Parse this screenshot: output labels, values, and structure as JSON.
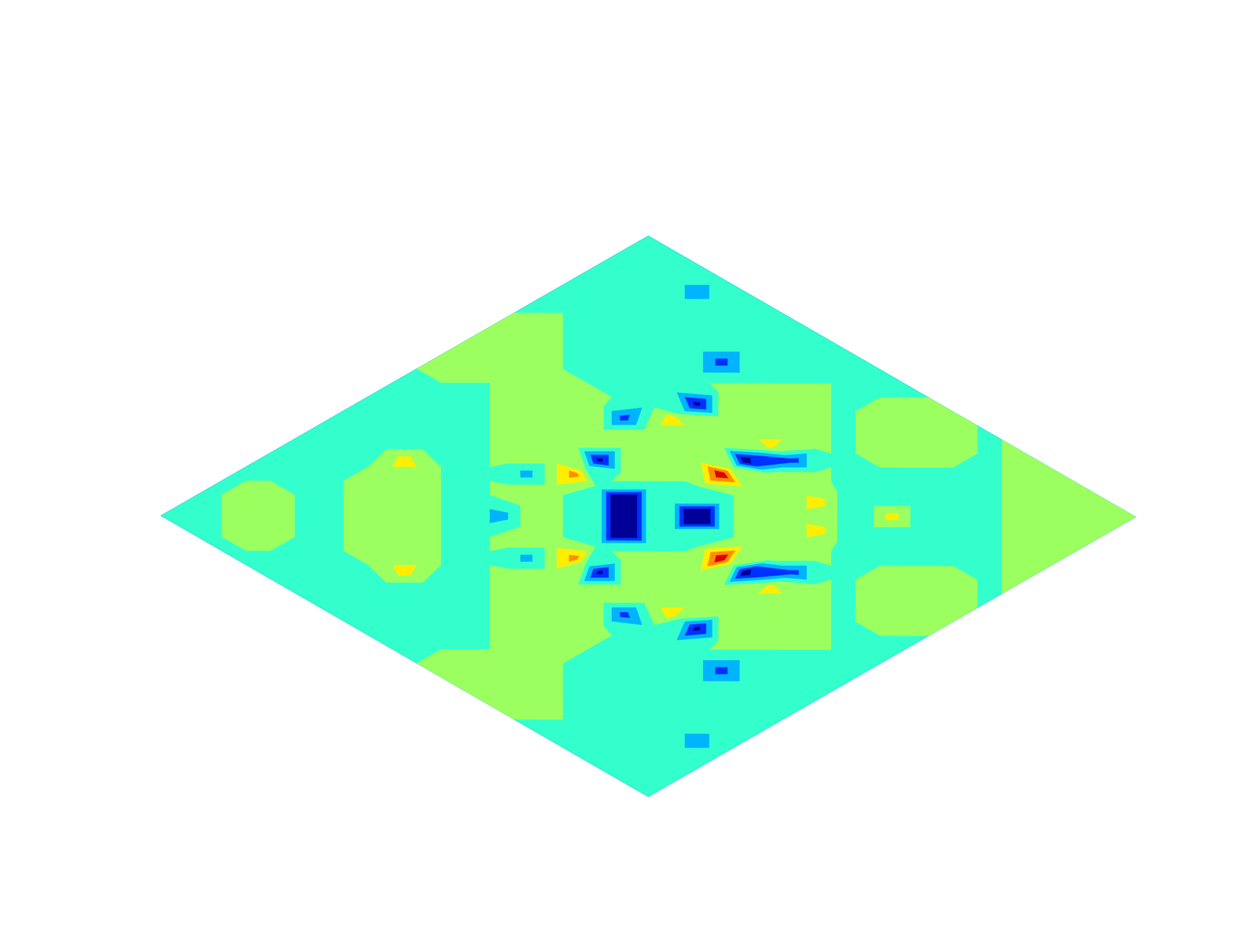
{
  "chart_data": {
    "type": "contour",
    "levels": [
      -3,
      -2,
      -1,
      0,
      1,
      2,
      3
    ],
    "colors": [
      "#000096",
      "#0030ff",
      "#00b4ff",
      "#33ffcc",
      "#9cff60",
      "#ffee00",
      "#ff8c00",
      "#dd0000"
    ],
    "values": [
      [
        -0.5,
        -0.5,
        -0.5,
        -0.5,
        -0.5,
        -0.5,
        -0.5,
        -0.5,
        -0.5,
        -0.5,
        -0.5,
        0.5,
        0.5,
        0.5,
        0.5,
        -0.5,
        -0.5,
        -0.5,
        -0.5,
        -0.5,
        -0.5
      ],
      [
        -0.5,
        -0.5,
        0.5,
        0.5,
        -0.5,
        -0.5,
        -0.5,
        -0.5,
        -0.5,
        -0.5,
        -0.5,
        0.5,
        0.5,
        0.5,
        0.5,
        0.5,
        -0.5,
        -0.5,
        -0.5,
        -0.5,
        -0.5
      ],
      [
        -0.5,
        0.5,
        0.5,
        0.5,
        -0.5,
        -0.5,
        -0.5,
        -0.5,
        -0.5,
        -0.5,
        -0.5,
        -0.5,
        0.5,
        0.5,
        0.5,
        -0.5,
        -0.5,
        -0.5,
        -0.5,
        -0.5,
        -0.5
      ],
      [
        -0.5,
        0.5,
        0.5,
        -0.5,
        -0.5,
        0.5,
        0.5,
        1.5,
        -0.5,
        -0.5,
        -0.5,
        0.5,
        0.5,
        0.5,
        -0.5,
        -0.5,
        -0.5,
        -0.5,
        -0.5,
        -1.5,
        -0.5
      ],
      [
        -0.5,
        -0.5,
        -0.5,
        -0.5,
        0.5,
        0.5,
        0.5,
        0.5,
        -0.5,
        -0.5,
        0.5,
        0.5,
        0.5,
        0.5,
        -0.5,
        -0.5,
        -0.5,
        -0.5,
        -0.5,
        -0.5,
        -0.5
      ],
      [
        -0.5,
        -0.5,
        -0.5,
        0.5,
        0.5,
        0.5,
        0.5,
        -0.5,
        -0.5,
        0.5,
        0.5,
        0.5,
        0.5,
        0.5,
        -0.5,
        -0.5,
        -0.5,
        -0.5,
        -0.5,
        -0.5,
        -0.5
      ],
      [
        -0.5,
        -0.5,
        -0.5,
        0.5,
        0.5,
        0.5,
        -0.5,
        -0.5,
        0.5,
        -1.5,
        0.5,
        0.5,
        0.5,
        -2.5,
        -0.5,
        -0.5,
        -0.5,
        -2.5,
        -0.5,
        -0.5,
        -0.5
      ],
      [
        -0.5,
        -0.5,
        -0.5,
        1.5,
        0.5,
        -0.5,
        -0.5,
        -1.5,
        0.5,
        0.5,
        2.5,
        -3.5,
        0.5,
        0.5,
        1.5,
        -3.5,
        0.5,
        -0.5,
        -0.5,
        -0.5,
        -0.5
      ],
      [
        -0.5,
        -0.5,
        -0.5,
        -0.5,
        -0.5,
        -0.5,
        0.5,
        0.5,
        0.5,
        -0.5,
        -0.5,
        0.5,
        0.5,
        0.5,
        0.5,
        0.5,
        0.5,
        0.5,
        -0.5,
        -0.5,
        -0.5
      ],
      [
        -0.5,
        -0.5,
        -0.5,
        -0.5,
        -0.5,
        0.5,
        -1.5,
        0.5,
        -0.5,
        -0.5,
        -6,
        -0.5,
        0.5,
        0.5,
        0.5,
        0.5,
        0.5,
        0.5,
        0.5,
        -0.5,
        -0.5
      ],
      [
        -0.5,
        -0.5,
        -0.5,
        -0.5,
        0.5,
        0.5,
        0.5,
        2.5,
        -0.5,
        -6,
        -0.5,
        -0.5,
        -0.5,
        4,
        -4,
        1.5,
        0.5,
        0.5,
        -0.5,
        -0.5,
        -0.5
      ],
      [
        0.5,
        0.5,
        -0.5,
        0.5,
        0.5,
        0.5,
        0.5,
        -3.5,
        0.5,
        -0.5,
        -0.5,
        -6,
        -0.5,
        0.5,
        0.5,
        -2.5,
        0.5,
        -0.5,
        0.5,
        0.5,
        -0.5
      ],
      [
        0.5,
        0.5,
        0.5,
        0.5,
        0.5,
        0.5,
        0.5,
        0.5,
        0.5,
        0.5,
        -0.5,
        -0.5,
        0.5,
        0.5,
        0.5,
        0.5,
        -0.5,
        0.5,
        0.5,
        0.5,
        0.5
      ],
      [
        0.5,
        0.5,
        0.5,
        0.5,
        0.5,
        0.5,
        -2.5,
        0.5,
        0.5,
        0.5,
        4,
        0.5,
        0.5,
        0.5,
        1.5,
        -0.5,
        -0.5,
        0.5,
        0.5,
        0.5,
        0.5
      ],
      [
        0.5,
        0.5,
        0.5,
        -0.5,
        -0.5,
        -0.5,
        -0.5,
        1.5,
        0.5,
        0.5,
        -4,
        0.5,
        0.5,
        1.5,
        -0.5,
        -0.5,
        -0.5,
        -0.5,
        0.5,
        0.5,
        -0.5
      ],
      [
        -0.5,
        0.5,
        -0.5,
        -0.5,
        -0.5,
        -0.5,
        -0.5,
        -3.5,
        0.5,
        0.5,
        1.5,
        -2.5,
        0.5,
        -0.5,
        -0.5,
        1.5,
        -0.5,
        -0.5,
        -0.5,
        -0.5,
        0.5
      ],
      [
        -0.5,
        -0.5,
        -0.5,
        -0.5,
        -0.5,
        -0.5,
        -0.5,
        0.5,
        0.5,
        0.5,
        0.5,
        0.5,
        -0.5,
        -0.5,
        -0.5,
        -0.5,
        -0.5,
        -0.5,
        -0.5,
        0.5,
        0.5
      ],
      [
        -0.5,
        -0.5,
        -0.5,
        -0.5,
        -0.5,
        -0.5,
        -2.5,
        -0.5,
        0.5,
        0.5,
        0.5,
        -0.5,
        0.5,
        0.5,
        -0.5,
        -0.5,
        -0.5,
        -0.5,
        0.5,
        0.5,
        0.5
      ],
      [
        -0.5,
        -0.5,
        -0.5,
        -0.5,
        -0.5,
        -0.5,
        -0.5,
        -0.5,
        -0.5,
        0.5,
        -0.5,
        0.5,
        0.5,
        0.5,
        0.5,
        -0.5,
        -0.5,
        0.5,
        0.5,
        0.5,
        0.5
      ],
      [
        -0.5,
        -0.5,
        -0.5,
        -1.5,
        -0.5,
        -0.5,
        -0.5,
        -0.5,
        -0.5,
        -0.5,
        -0.5,
        0.5,
        0.5,
        0.5,
        0.5,
        -0.5,
        0.5,
        0.5,
        0.5,
        0.5,
        0.5
      ],
      [
        -0.5,
        -0.5,
        -0.5,
        -0.5,
        -0.5,
        -0.5,
        -0.5,
        -0.5,
        -0.5,
        -0.5,
        -0.5,
        -0.5,
        0.5,
        0.5,
        -0.5,
        0.5,
        0.5,
        0.5,
        0.5,
        0.5,
        0.5
      ]
    ]
  }
}
